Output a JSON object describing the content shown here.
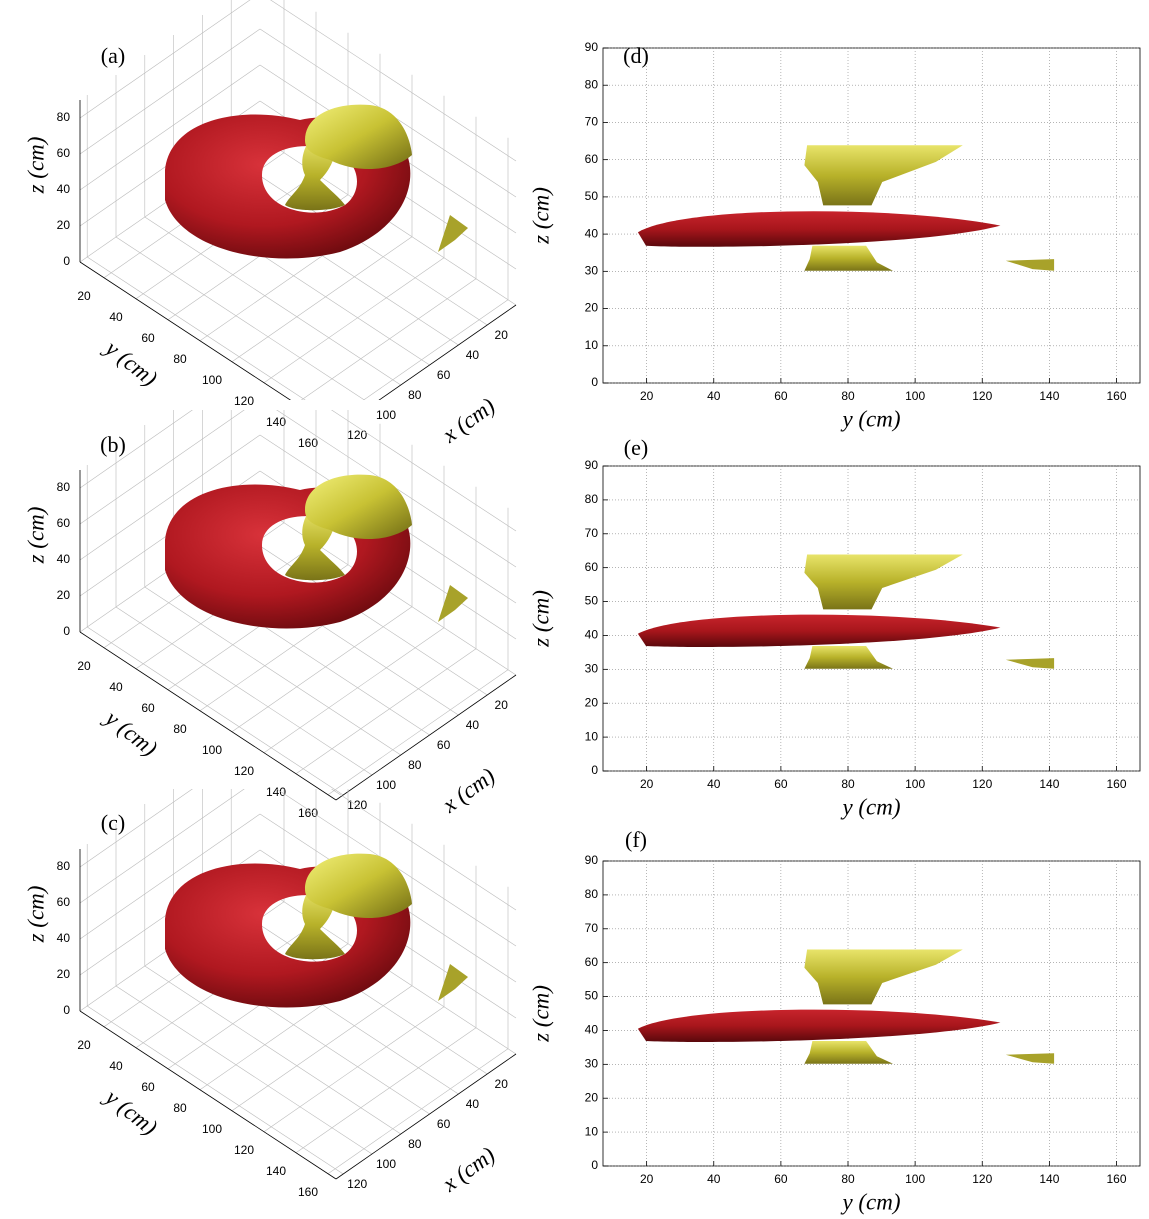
{
  "chart_data": [
    {
      "type": "surface3d",
      "label": "(a)",
      "xlabel": "x (cm)",
      "ylabel": "y (cm)",
      "zlabel": "z (cm)",
      "xlim": [
        0,
        125
      ],
      "ylim": [
        5,
        165
      ],
      "zlim": [
        0,
        90
      ],
      "xticks": [
        20,
        40,
        60,
        80,
        100,
        120
      ],
      "yticks": [
        20,
        40,
        60,
        80,
        100,
        120,
        140,
        160
      ],
      "zticks": [
        0,
        20,
        40,
        60,
        80
      ]
    },
    {
      "type": "surface3d",
      "label": "(b)",
      "xlabel": "x (cm)",
      "ylabel": "y (cm)",
      "zlabel": "z (cm)",
      "xlim": [
        0,
        125
      ],
      "ylim": [
        5,
        165
      ],
      "zlim": [
        0,
        90
      ],
      "xticks": [
        20,
        40,
        60,
        80,
        100,
        120
      ],
      "yticks": [
        20,
        40,
        60,
        80,
        100,
        120,
        140,
        160
      ],
      "zticks": [
        0,
        20,
        40,
        60,
        80
      ]
    },
    {
      "type": "surface3d",
      "label": "(c)",
      "xlabel": "x (cm)",
      "ylabel": "y (cm)",
      "zlabel": "z (cm)",
      "xlim": [
        0,
        125
      ],
      "ylim": [
        5,
        165
      ],
      "zlim": [
        0,
        90
      ],
      "xticks": [
        20,
        40,
        60,
        80,
        100,
        120
      ],
      "yticks": [
        20,
        40,
        60,
        80,
        100,
        120,
        140,
        160
      ],
      "zticks": [
        0,
        20,
        40,
        60,
        80
      ]
    },
    {
      "type": "projection",
      "label": "(d)",
      "xlabel": "y (cm)",
      "ylabel": "z (cm)",
      "xlim": [
        7,
        167
      ],
      "ylim": [
        0,
        90
      ],
      "xticks": [
        20,
        40,
        60,
        80,
        100,
        120,
        140,
        160
      ],
      "yticks": [
        0,
        10,
        20,
        30,
        40,
        50,
        60,
        70,
        80,
        90
      ],
      "grid": true
    },
    {
      "type": "projection",
      "label": "(e)",
      "xlabel": "y (cm)",
      "ylabel": "z (cm)",
      "xlim": [
        7,
        167
      ],
      "ylim": [
        0,
        90
      ],
      "xticks": [
        20,
        40,
        60,
        80,
        100,
        120,
        140,
        160
      ],
      "yticks": [
        0,
        10,
        20,
        30,
        40,
        50,
        60,
        70,
        80,
        90
      ],
      "grid": true
    },
    {
      "type": "projection",
      "label": "(f)",
      "xlabel": "y (cm)",
      "ylabel": "z (cm)",
      "xlim": [
        7,
        167
      ],
      "ylim": [
        0,
        90
      ],
      "xticks": [
        20,
        40,
        60,
        80,
        100,
        120,
        140,
        160
      ],
      "yticks": [
        0,
        10,
        20,
        30,
        40,
        50,
        60,
        70,
        80,
        90
      ],
      "grid": true
    }
  ]
}
